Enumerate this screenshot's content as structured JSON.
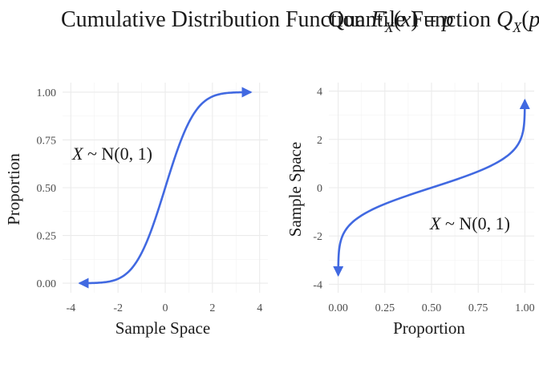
{
  "chart_data": [
    {
      "type": "line",
      "title": "Cumulative Distribution Function F_X(x) = p",
      "xlabel": "Sample Space",
      "ylabel": "Proportion",
      "xlim": [
        -4,
        4
      ],
      "ylim": [
        0,
        1
      ],
      "xticks": [
        "-4",
        "-2",
        "0",
        "2",
        "4"
      ],
      "yticks": [
        "0.00",
        "0.25",
        "0.50",
        "0.75",
        "1.00"
      ],
      "annotation": "X ~ N(0, 1)",
      "line_color": "#4169E1",
      "arrows": "both-ends",
      "grid": true,
      "x": [
        -3.5,
        -3.0,
        -2.5,
        -2.0,
        -1.5,
        -1.0,
        -0.5,
        0.0,
        0.5,
        1.0,
        1.5,
        2.0,
        2.5,
        3.0,
        3.5
      ],
      "y": [
        0.0002,
        0.0013,
        0.0062,
        0.0228,
        0.0668,
        0.1587,
        0.3085,
        0.5,
        0.6915,
        0.8413,
        0.9332,
        0.9772,
        0.9938,
        0.9987,
        0.9998
      ]
    },
    {
      "type": "line",
      "title": "Quantile Function Q_X(p) = x",
      "xlabel": "Proportion",
      "ylabel": "Sample Space",
      "xlim": [
        0,
        1
      ],
      "ylim": [
        -4,
        4
      ],
      "xticks": [
        "0.00",
        "0.25",
        "0.50",
        "0.75",
        "1.00"
      ],
      "yticks": [
        "-4",
        "-2",
        "0",
        "2",
        "4"
      ],
      "annotation": "X ~ N(0, 1)",
      "line_color": "#4169E1",
      "arrows": "both-ends",
      "grid": true,
      "x": [
        0.0002,
        0.0013,
        0.0062,
        0.0228,
        0.0668,
        0.1587,
        0.3085,
        0.5,
        0.6915,
        0.8413,
        0.9332,
        0.9772,
        0.9938,
        0.9987,
        0.9998
      ],
      "y": [
        -3.5,
        -3.0,
        -2.5,
        -2.0,
        -1.5,
        -1.0,
        -0.5,
        0.0,
        0.5,
        1.0,
        1.5,
        2.0,
        2.5,
        3.0,
        3.5
      ]
    }
  ]
}
